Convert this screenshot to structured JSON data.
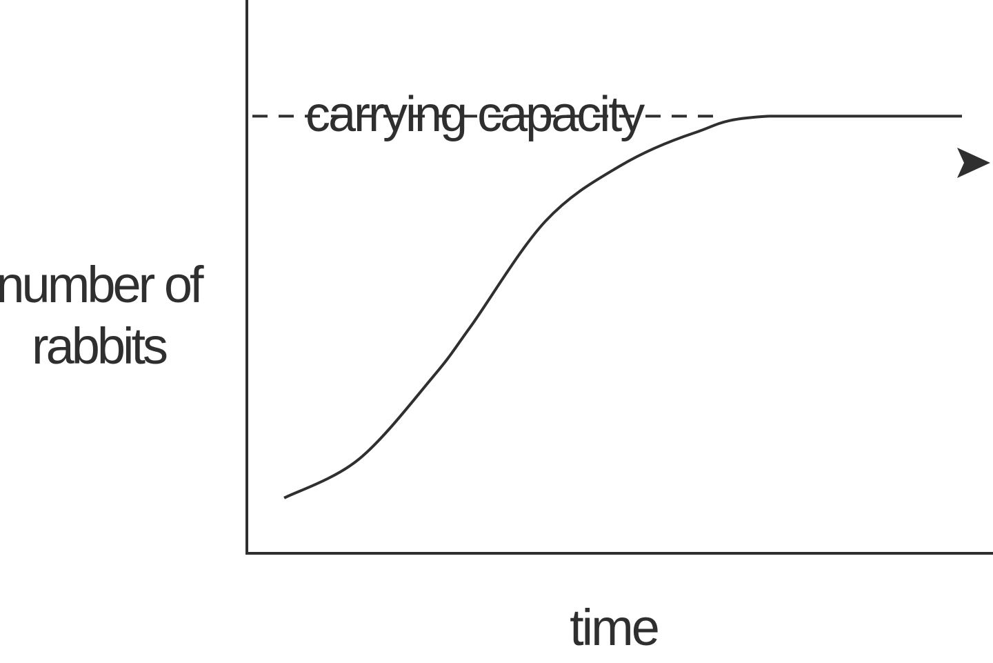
{
  "chart_data": {
    "type": "line",
    "title": "",
    "xlabel": "time",
    "ylabel": [
      "number of",
      "rabbits"
    ],
    "xlim": [
      0,
      100
    ],
    "ylim": [
      0,
      100
    ],
    "grid": false,
    "legend": "none",
    "annotation": {
      "text": "carrying capacity",
      "y": 79
    },
    "series": [
      {
        "x": [
          5,
          15,
          25,
          30,
          40,
          50,
          60,
          70,
          100
        ],
        "y": [
          10,
          17,
          32,
          41,
          60,
          70,
          76,
          79,
          79
        ]
      }
    ],
    "colors": {
      "line": "#2f2f2f",
      "axis": "#2f2f2f",
      "text": "#2f2f2f"
    }
  }
}
